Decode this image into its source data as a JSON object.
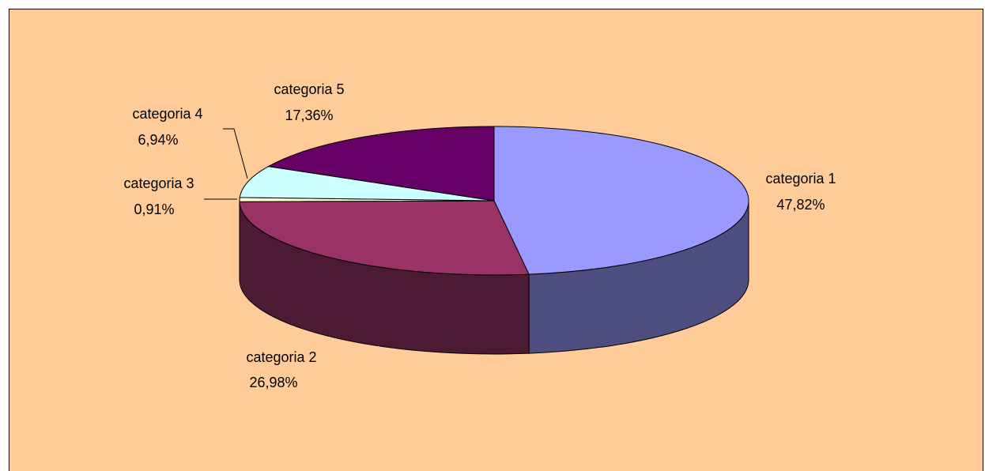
{
  "chart_data": {
    "type": "pie",
    "title": "",
    "style": "3d",
    "slices": [
      {
        "category": "categoria 1",
        "value": 47.82,
        "label": "47,82%",
        "color": "#9999ff",
        "side_color": "#4d4d80"
      },
      {
        "category": "categoria 2",
        "value": 26.98,
        "label": "26,98%",
        "color": "#993366",
        "side_color": "#4d1a33"
      },
      {
        "category": "categoria 3",
        "value": 0.91,
        "label": "0,91%",
        "color": "#ffffcc",
        "side_color": "#808066"
      },
      {
        "category": "categoria 4",
        "value": 6.94,
        "label": "6,94%",
        "color": "#ccffff",
        "side_color": "#668080"
      },
      {
        "category": "categoria 5",
        "value": 17.36,
        "label": "17,36%",
        "color": "#660066",
        "side_color": "#330033"
      }
    ],
    "background": "#ffcc99"
  }
}
